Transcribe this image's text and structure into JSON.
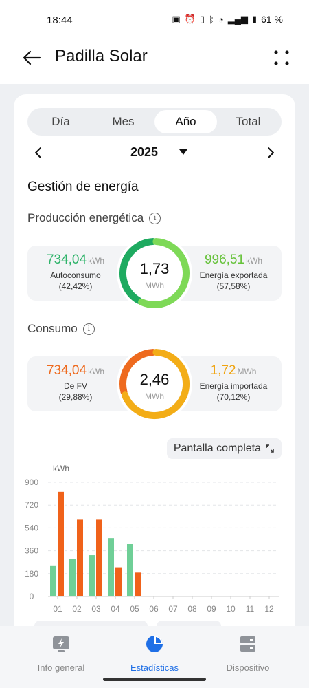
{
  "status": {
    "time": "18:44",
    "battery": "61 %"
  },
  "header": {
    "title": "Padilla Solar"
  },
  "tabs": [
    {
      "label": "Día",
      "active": false
    },
    {
      "label": "Mes",
      "active": false
    },
    {
      "label": "Año",
      "active": true
    },
    {
      "label": "Total",
      "active": false
    }
  ],
  "period": {
    "year": "2025"
  },
  "energy": {
    "title": "Gestión de energía",
    "production": {
      "title": "Producción energética",
      "total": "1,73",
      "total_unit": "MWh",
      "left": {
        "value": "734,04",
        "unit": "kWh",
        "label": "Autoconsumo",
        "pct": "(42,42%)",
        "fraction": 0.4242
      },
      "right": {
        "value": "996,51",
        "unit": "kWh",
        "label": "Energía exportada",
        "pct": "(57,58%)",
        "fraction": 0.5758
      }
    },
    "consumption": {
      "title": "Consumo",
      "total": "2,46",
      "total_unit": "MWh",
      "left": {
        "value": "734,04",
        "unit": "kWh",
        "label": "De FV",
        "pct": "(29,88%)",
        "fraction": 0.2988
      },
      "right": {
        "value": "1,72",
        "unit": "MWh",
        "label": "Energía importada",
        "pct": "(70,12%)",
        "fraction": 0.7012
      }
    }
  },
  "fullscreen_label": "Pantalla completa",
  "chart_data": {
    "type": "bar",
    "ylabel": "kWh",
    "ylim": [
      0,
      900
    ],
    "yticks": [
      0,
      180,
      360,
      540,
      720,
      900
    ],
    "categories": [
      "01",
      "02",
      "03",
      "04",
      "05",
      "06",
      "07",
      "08",
      "09",
      "10",
      "11",
      "12"
    ],
    "series": [
      {
        "color": "#6fcf97",
        "values": [
          245,
          295,
          325,
          460,
          415,
          0,
          0,
          0,
          0,
          0,
          0,
          0
        ]
      },
      {
        "color": "#f0621a",
        "values": [
          825,
          605,
          605,
          230,
          188,
          0,
          0,
          0,
          0,
          0,
          0,
          0
        ]
      }
    ],
    "grid": true
  },
  "nav": [
    {
      "label": "Info general",
      "icon": "info-panel-icon",
      "active": false
    },
    {
      "label": "Estadísticas",
      "icon": "pie-chart-icon",
      "active": true
    },
    {
      "label": "Dispositivo",
      "icon": "server-icon",
      "active": false
    }
  ]
}
